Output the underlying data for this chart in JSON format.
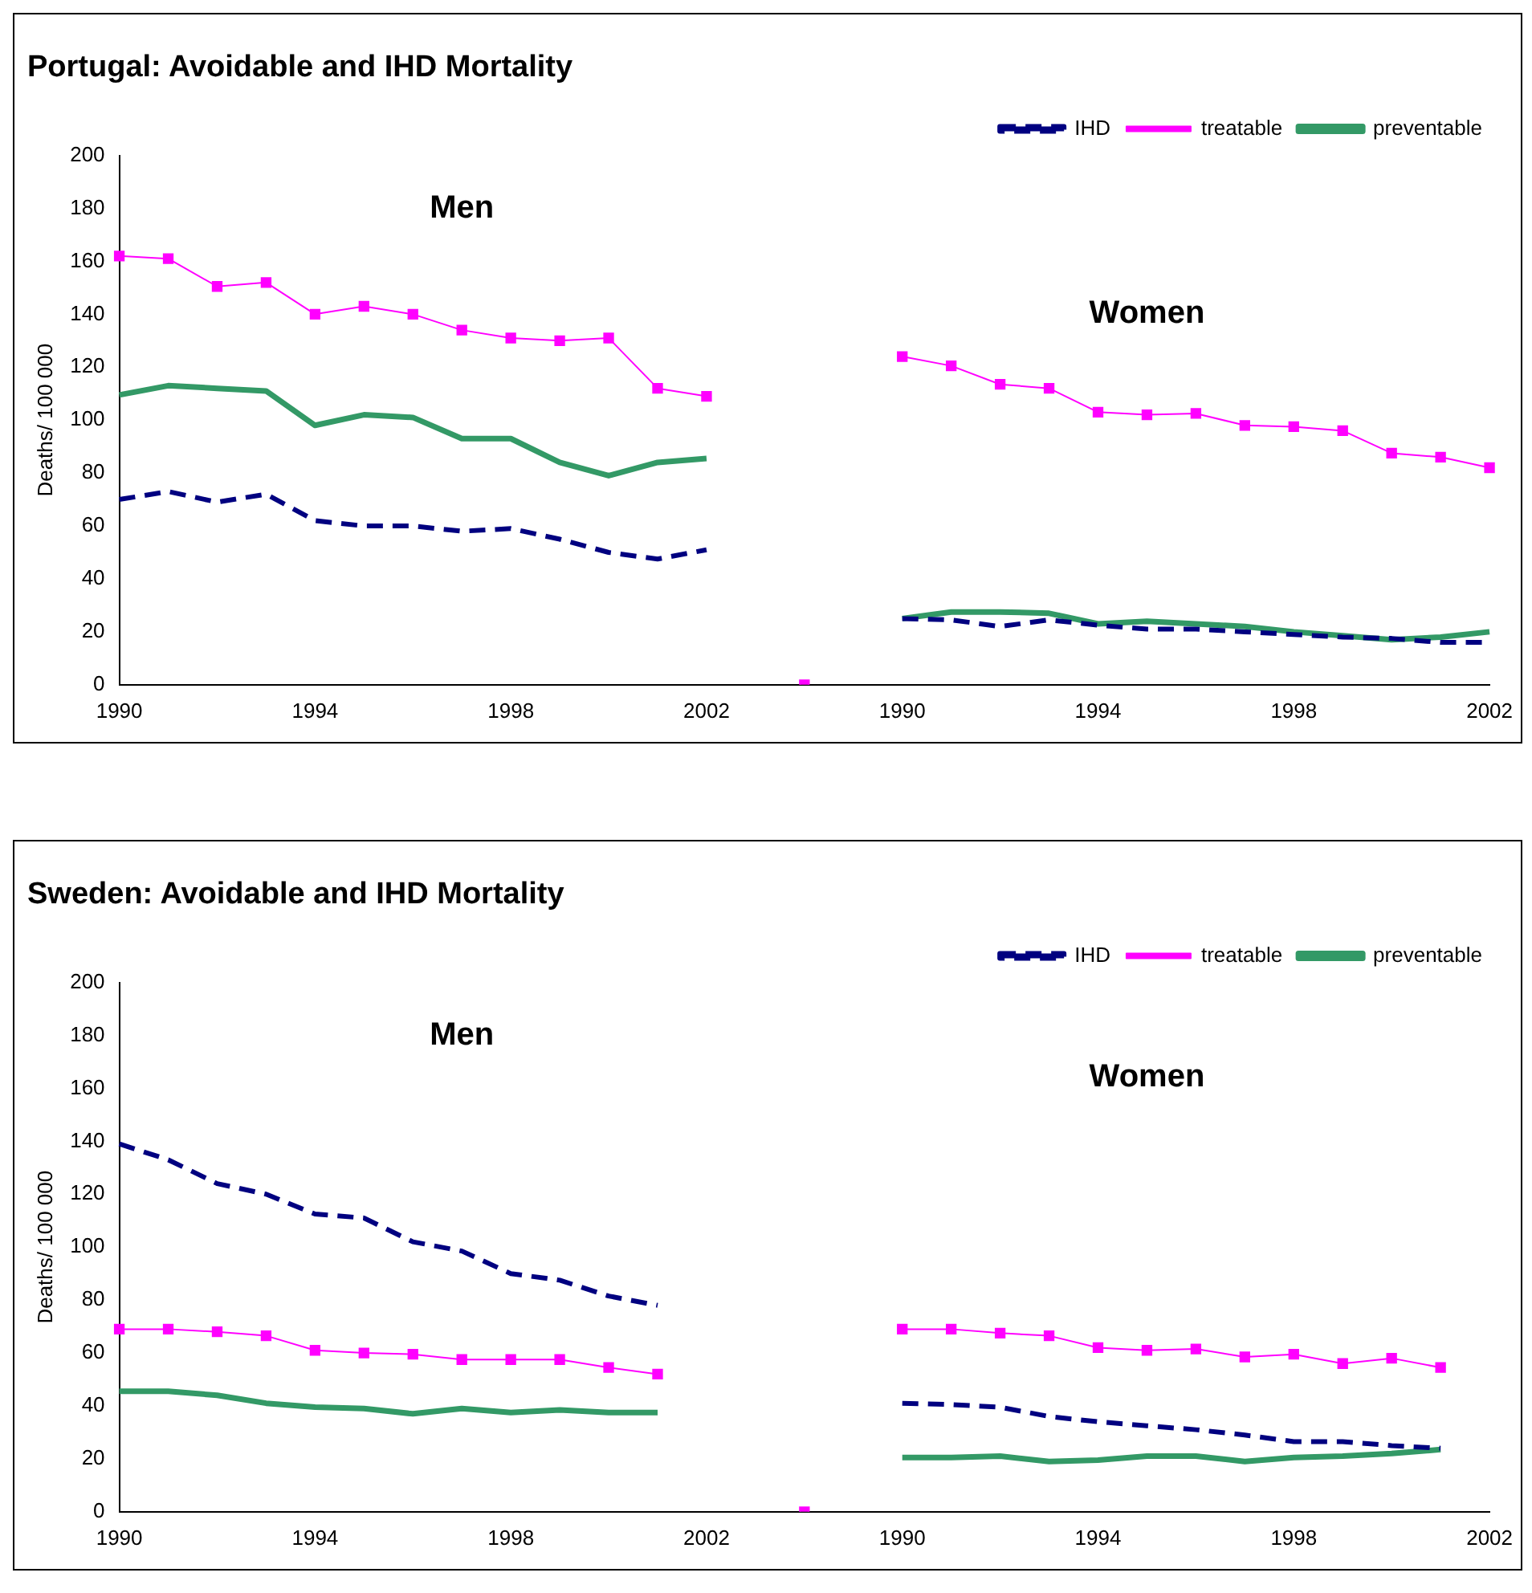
{
  "chart_data": [
    {
      "type": "line",
      "title": "Portugal: Avoidable and IHD Mortality",
      "ylabel": "Deaths/ 100 000",
      "annotations": [
        "Men",
        "Women"
      ],
      "categories": [
        "1990",
        null,
        null,
        null,
        "1994",
        null,
        null,
        null,
        "1998",
        null,
        null,
        null,
        "2002",
        null,
        null,
        null,
        "1990",
        null,
        null,
        null,
        "1994",
        null,
        null,
        null,
        "1998",
        null,
        null,
        null,
        "2002"
      ],
      "series": [
        {
          "name": "IHD",
          "color": "#000080",
          "line_style": "dashed",
          "marker": "none",
          "values": [
            70,
            73,
            69,
            72,
            62,
            60,
            60,
            58,
            59,
            55,
            50,
            47.5,
            51,
            null,
            null,
            null,
            25,
            24.5,
            22,
            24.5,
            22.5,
            21,
            21,
            20,
            19,
            18,
            17.5,
            16,
            16
          ]
        },
        {
          "name": "treatable",
          "color": "#ff00ff",
          "line_style": "solid",
          "marker": "square",
          "values": [
            162,
            161,
            150.5,
            152,
            140,
            143,
            140,
            134,
            131,
            130,
            131,
            112,
            109,
            null,
            0,
            null,
            124,
            120.5,
            113.5,
            112,
            103,
            102,
            102.5,
            98,
            97.5,
            96,
            87.5,
            86,
            82
          ]
        },
        {
          "name": "preventable",
          "color": "#339966",
          "line_style": "solid",
          "marker": "none",
          "values": [
            109.5,
            113,
            112,
            111,
            98,
            102,
            101,
            93,
            93,
            84,
            79,
            84,
            85.5,
            null,
            null,
            null,
            25,
            27.5,
            27.5,
            27,
            23,
            24,
            23,
            22,
            20,
            18.5,
            17,
            18,
            20
          ]
        }
      ],
      "ylim": [
        0,
        200
      ],
      "yticks": [
        0,
        20,
        40,
        60,
        80,
        100,
        120,
        140,
        160,
        180,
        200
      ],
      "grid": false,
      "legend": "top right"
    },
    {
      "type": "line",
      "title": "Sweden: Avoidable and IHD Mortality",
      "ylabel": "Deaths/ 100 000",
      "annotations": [
        "Men",
        "Women"
      ],
      "categories": [
        "1990",
        null,
        null,
        null,
        "1994",
        null,
        null,
        null,
        "1998",
        null,
        null,
        null,
        "2002",
        null,
        null,
        null,
        "1990",
        null,
        null,
        null,
        "1994",
        null,
        null,
        null,
        "1998",
        null,
        null,
        null,
        "2002"
      ],
      "series": [
        {
          "name": "IHD",
          "color": "#000080",
          "line_style": "dashed",
          "marker": "none",
          "values": [
            139,
            133,
            124,
            120,
            112.5,
            111,
            102,
            98.5,
            90,
            87.5,
            81.5,
            78,
            null,
            null,
            null,
            null,
            41,
            40.5,
            39.5,
            36,
            34,
            32.5,
            31,
            29,
            26.5,
            26.5,
            25,
            24,
            null
          ]
        },
        {
          "name": "treatable",
          "color": "#ff00ff",
          "line_style": "solid",
          "marker": "square",
          "values": [
            69,
            69,
            68,
            66.5,
            61,
            60,
            59.5,
            57.5,
            57.5,
            57.5,
            54.5,
            52,
            null,
            null,
            0,
            null,
            69,
            69,
            67.5,
            66.5,
            62,
            61,
            61.5,
            58.5,
            59.5,
            56,
            58,
            54.5,
            null
          ]
        },
        {
          "name": "preventable",
          "color": "#339966",
          "line_style": "solid",
          "marker": "none",
          "values": [
            45.5,
            45.5,
            44,
            41,
            39.5,
            39,
            37,
            39,
            37.5,
            38.5,
            37.5,
            37.5,
            null,
            null,
            null,
            null,
            20.5,
            20.5,
            21,
            19,
            19.5,
            21,
            21,
            19,
            20.5,
            21,
            22,
            23.5,
            null
          ]
        }
      ],
      "ylim": [
        0,
        200
      ],
      "yticks": [
        0,
        20,
        40,
        60,
        80,
        100,
        120,
        140,
        160,
        180,
        200
      ],
      "grid": false,
      "legend": "top right"
    }
  ]
}
